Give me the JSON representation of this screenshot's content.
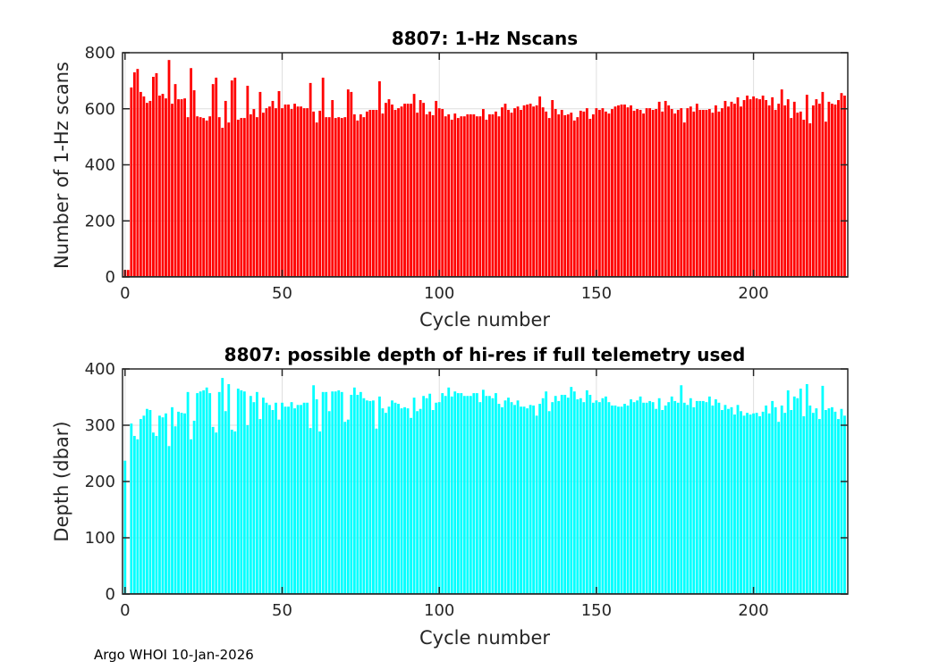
{
  "chart_data": [
    {
      "type": "bar",
      "title": "8807: 1-Hz Nscans",
      "xlabel": "Cycle number",
      "ylabel": "Number of 1-Hz scans",
      "xlim": [
        -0.8,
        230
      ],
      "ylim": [
        0,
        800
      ],
      "xticks": [
        0,
        50,
        100,
        150,
        200
      ],
      "yticks": [
        0,
        200,
        400,
        600,
        800
      ],
      "grid": true,
      "color": "#ff0000",
      "x_start": 0,
      "values": [
        25,
        25,
        676,
        730,
        742,
        660,
        644,
        621,
        628,
        714,
        727,
        647,
        653,
        637,
        774,
        618,
        688,
        634,
        634,
        637,
        570,
        745,
        666,
        573,
        570,
        567,
        558,
        573,
        688,
        711,
        570,
        532,
        628,
        551,
        701,
        711,
        561,
        567,
        567,
        682,
        580,
        599,
        570,
        660,
        586,
        602,
        608,
        628,
        602,
        663,
        602,
        615,
        615,
        599,
        618,
        608,
        608,
        602,
        602,
        692,
        590,
        551,
        593,
        711,
        570,
        570,
        631,
        567,
        570,
        567,
        570,
        669,
        660,
        580,
        558,
        580,
        570,
        590,
        596,
        596,
        596,
        698,
        583,
        621,
        634,
        615,
        596,
        602,
        608,
        618,
        618,
        618,
        653,
        586,
        631,
        621,
        580,
        590,
        577,
        628,
        602,
        599,
        573,
        580,
        561,
        583,
        567,
        573,
        573,
        580,
        580,
        580,
        573,
        573,
        599,
        561,
        580,
        580,
        590,
        573,
        605,
        618,
        596,
        586,
        602,
        608,
        596,
        612,
        615,
        618,
        608,
        612,
        644,
        605,
        590,
        567,
        631,
        599,
        580,
        596,
        577,
        580,
        586,
        558,
        570,
        593,
        590,
        602,
        564,
        580,
        602,
        596,
        602,
        590,
        583,
        599,
        608,
        612,
        615,
        615,
        605,
        612,
        593,
        599,
        596,
        583,
        602,
        602,
        596,
        599,
        625,
        590,
        628,
        612,
        599,
        583,
        596,
        602,
        551,
        602,
        608,
        590,
        618,
        596,
        596,
        596,
        599,
        586,
        612,
        590,
        602,
        628,
        608,
        625,
        618,
        641,
        608,
        631,
        647,
        634,
        644,
        637,
        634,
        647,
        631,
        612,
        641,
        596,
        618,
        669,
        612,
        634,
        567,
        625,
        586,
        590,
        561,
        650,
        548,
        612,
        634,
        618,
        660,
        554,
        625,
        618,
        615,
        631,
        656,
        647
      ]
    },
    {
      "type": "bar",
      "title": "8807: possible depth of hi-res if full telemetry used",
      "xlabel": "Cycle number",
      "ylabel": "Depth (dbar)",
      "xlim": [
        -0.8,
        230
      ],
      "ylim": [
        0,
        400
      ],
      "xticks": [
        0,
        50,
        100,
        150,
        200
      ],
      "yticks": [
        0,
        100,
        200,
        300,
        400
      ],
      "grid": true,
      "color": "#00ffff",
      "x_start": 0,
      "values": [
        237,
        0,
        303,
        281,
        275,
        311,
        317,
        329,
        327,
        287,
        281,
        317,
        314,
        321,
        263,
        332,
        298,
        324,
        322,
        321,
        359,
        275,
        308,
        357,
        360,
        362,
        367,
        357,
        297,
        287,
        359,
        384,
        325,
        373,
        292,
        289,
        365,
        362,
        360,
        300,
        352,
        341,
        359,
        311,
        349,
        340,
        336,
        327,
        340,
        310,
        340,
        333,
        333,
        341,
        330,
        336,
        336,
        340,
        340,
        295,
        371,
        346,
        289,
        359,
        359,
        325,
        360,
        360,
        362,
        359,
        306,
        310,
        354,
        367,
        354,
        359,
        348,
        344,
        343,
        344,
        294,
        351,
        330,
        322,
        333,
        344,
        340,
        338,
        330,
        332,
        330,
        313,
        349,
        325,
        329,
        352,
        348,
        356,
        327,
        340,
        341,
        357,
        352,
        367,
        351,
        360,
        357,
        357,
        352,
        352,
        352,
        357,
        357,
        341,
        363,
        352,
        352,
        348,
        357,
        338,
        332,
        344,
        349,
        341,
        336,
        344,
        333,
        333,
        330,
        336,
        335,
        317,
        338,
        348,
        360,
        325,
        341,
        352,
        343,
        354,
        354,
        349,
        368,
        360,
        346,
        348,
        341,
        362,
        354,
        340,
        344,
        341,
        348,
        351,
        341,
        335,
        335,
        333,
        333,
        338,
        335,
        346,
        341,
        344,
        351,
        340,
        340,
        343,
        341,
        329,
        348,
        327,
        335,
        341,
        351,
        343,
        340,
        371,
        340,
        336,
        348,
        332,
        343,
        343,
        343,
        341,
        351,
        335,
        346,
        340,
        327,
        336,
        329,
        332,
        319,
        336,
        325,
        317,
        322,
        319,
        321,
        322,
        316,
        324,
        335,
        321,
        343,
        332,
        306,
        335,
        322,
        362,
        327,
        351,
        348,
        365,
        316,
        373,
        335,
        322,
        330,
        311,
        370,
        327,
        330,
        332,
        324,
        311,
        329,
        317
      ]
    }
  ],
  "footer": "Argo WHOI 10-Jan-2026"
}
